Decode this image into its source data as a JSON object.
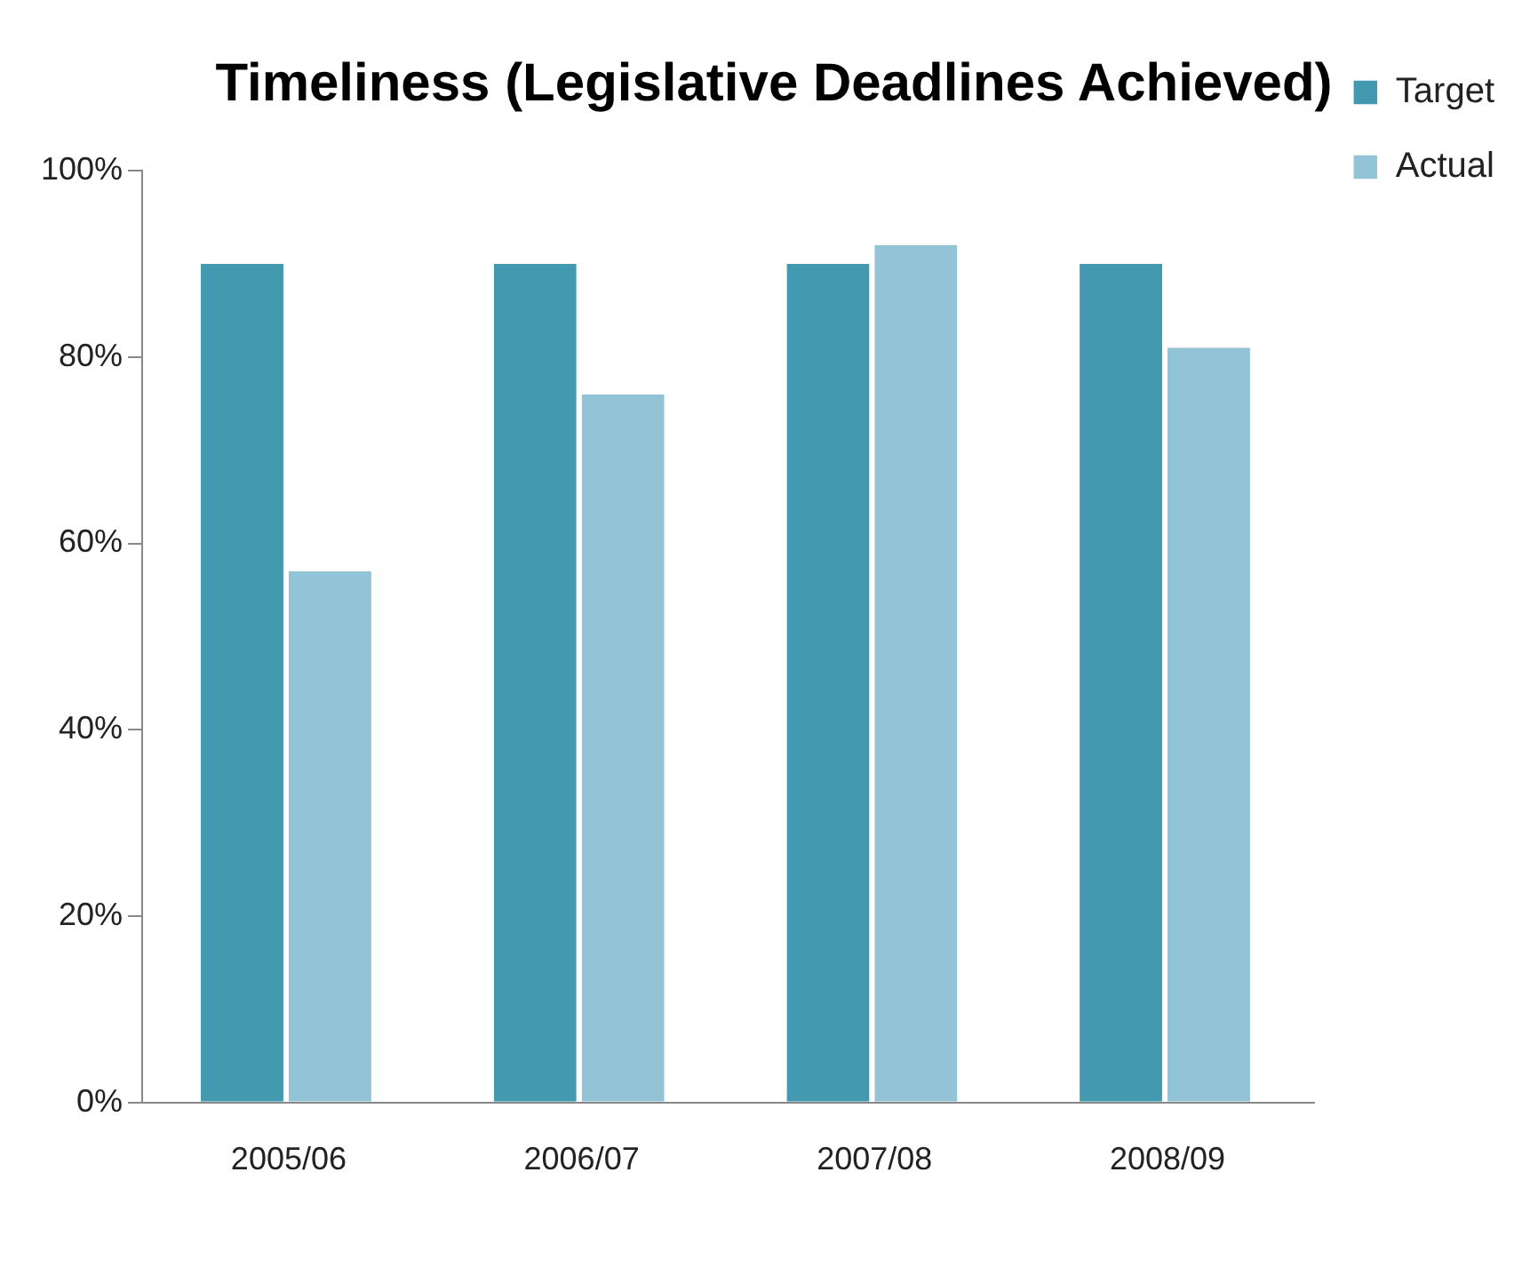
{
  "chart_data": {
    "type": "bar",
    "title": "Timeliness (Legislative Deadlines Achieved)",
    "categories": [
      "2005/06",
      "2006/07",
      "2007/08",
      "2008/09"
    ],
    "series": [
      {
        "name": "Target",
        "color": "#4299b0",
        "values": [
          90,
          90,
          90,
          90
        ]
      },
      {
        "name": "Actual",
        "color": "#93c3d6",
        "values": [
          57,
          76,
          92,
          81
        ]
      }
    ],
    "ylim": [
      0,
      100
    ],
    "yticks": [
      {
        "value": 0,
        "label": "0%"
      },
      {
        "value": 20,
        "label": "20%"
      },
      {
        "value": 40,
        "label": "40%"
      },
      {
        "value": 60,
        "label": "60%"
      },
      {
        "value": 80,
        "label": "80%"
      },
      {
        "value": 100,
        "label": "100%"
      }
    ],
    "grid": false,
    "legend": "top right"
  }
}
